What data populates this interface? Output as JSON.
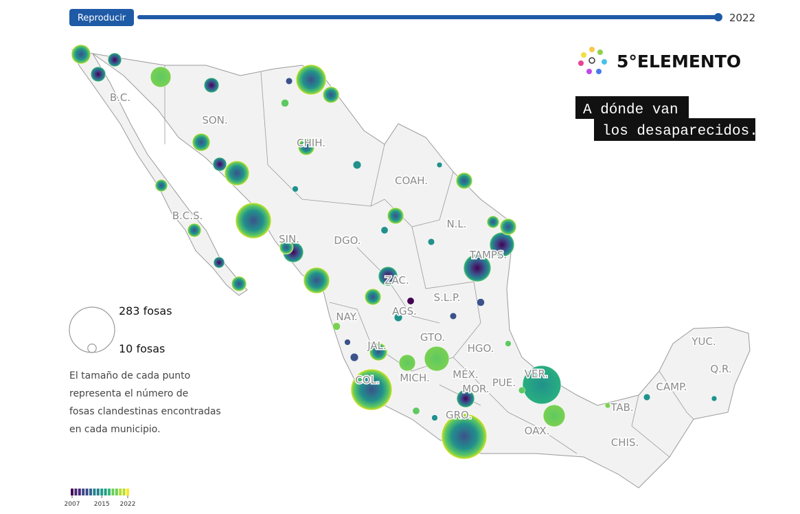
{
  "controls": {
    "play_button": "Reproducir",
    "year": "2022"
  },
  "brand": {
    "logo": "5°ELEMENTO",
    "headline": [
      "A dónde van",
      "los desaparecidos."
    ]
  },
  "states": [
    "B.C.",
    "SON.",
    "CHIH.",
    "COAH.",
    "B.C.S.",
    "N.L.",
    "DGO.",
    "SIN.",
    "TAMPS.",
    "ZAC.",
    "S.L.P.",
    "NAY.",
    "AGS.",
    "GTO.",
    "HGO.",
    "YUC.",
    "Q.R.",
    "JAL.",
    "MÉX.",
    "VER.",
    "COL.",
    "MICH.",
    "PUE.",
    "MOR.",
    "CAMP.",
    "TAB.",
    "GRO.",
    "OAX.",
    "CHIS."
  ],
  "legend": {
    "items": [
      {
        "value": 283,
        "label": "283 fosas"
      },
      {
        "value": 10,
        "label": "10 fosas"
      }
    ],
    "description": [
      "El tamaño de cada punto",
      "representa el número de",
      "fosas clandestinas encontradas",
      "en cada municipio."
    ]
  },
  "colorbar": {
    "range": [
      2007,
      2022
    ],
    "ticks": [
      2007,
      2015,
      2022
    ]
  },
  "bubbles": [
    51,
    31,
    26,
    58,
    31,
    126,
    37,
    44,
    26,
    84,
    176,
    37,
    37,
    84,
    104,
    58,
    94,
    51,
    37,
    44,
    234,
    283,
    84,
    203,
    66,
    17,
    31,
    26,
    21,
    37,
    37,
    44,
    21,
    37,
    26,
    8,
    6,
    5,
    9,
    7,
    4,
    6,
    8,
    5,
    7,
    9,
    4,
    6,
    5,
    8,
    6,
    7,
    5,
    4,
    9,
    6
  ]
}
